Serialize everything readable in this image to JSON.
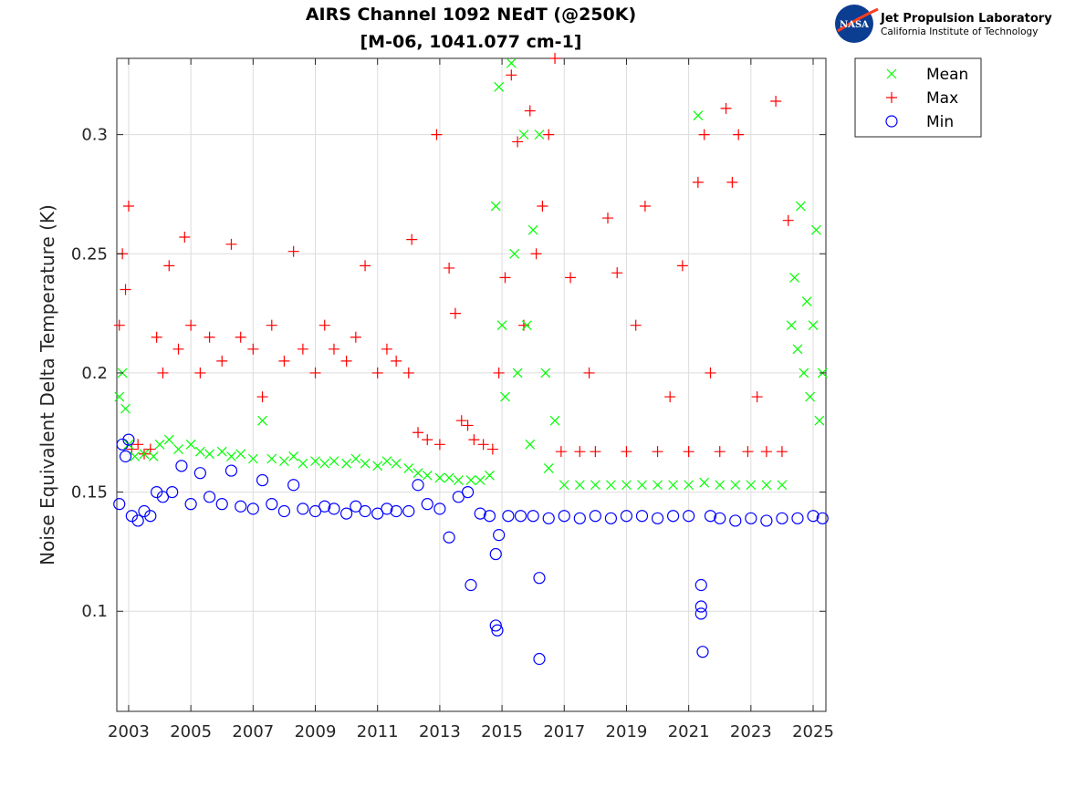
{
  "chart_data": {
    "type": "scatter",
    "title": "AIRS Channel 1092 NEdT (@250K)",
    "subtitle": "[M-06, 1041.077 cm-1]",
    "xlabel": "",
    "ylabel": "Noise Equivalent Delta Temperature (K)",
    "xlim": [
      2002.62,
      2025.41
    ],
    "ylim": [
      0.058,
      0.332
    ],
    "xticks": [
      "2003",
      "2005",
      "2007",
      "2009",
      "2011",
      "2013",
      "2015",
      "2017",
      "2019",
      "2021",
      "2023",
      "2025"
    ],
    "yticks": [
      "0.1",
      "0.15",
      "0.2",
      "0.25",
      "0.3"
    ],
    "grid": true,
    "legend_position": "outside-top-right",
    "series": [
      {
        "name": "Mean",
        "marker": "x",
        "color": "#00ff00",
        "points": [
          [
            2002.7,
            0.19
          ],
          [
            2002.8,
            0.2
          ],
          [
            2002.9,
            0.185
          ],
          [
            2003.0,
            0.17
          ],
          [
            2003.2,
            0.165
          ],
          [
            2003.5,
            0.166
          ],
          [
            2003.8,
            0.165
          ],
          [
            2004.0,
            0.17
          ],
          [
            2004.3,
            0.172
          ],
          [
            2004.6,
            0.168
          ],
          [
            2005.0,
            0.17
          ],
          [
            2005.3,
            0.167
          ],
          [
            2005.6,
            0.166
          ],
          [
            2006.0,
            0.167
          ],
          [
            2006.3,
            0.165
          ],
          [
            2006.6,
            0.166
          ],
          [
            2007.0,
            0.164
          ],
          [
            2007.3,
            0.18
          ],
          [
            2007.6,
            0.164
          ],
          [
            2008.0,
            0.163
          ],
          [
            2008.3,
            0.165
          ],
          [
            2008.6,
            0.162
          ],
          [
            2009.0,
            0.163
          ],
          [
            2009.3,
            0.162
          ],
          [
            2009.6,
            0.163
          ],
          [
            2010.0,
            0.162
          ],
          [
            2010.3,
            0.164
          ],
          [
            2010.6,
            0.162
          ],
          [
            2011.0,
            0.161
          ],
          [
            2011.3,
            0.163
          ],
          [
            2011.6,
            0.162
          ],
          [
            2012.0,
            0.16
          ],
          [
            2012.3,
            0.158
          ],
          [
            2012.6,
            0.157
          ],
          [
            2013.0,
            0.156
          ],
          [
            2013.3,
            0.156
          ],
          [
            2013.6,
            0.155
          ],
          [
            2014.0,
            0.155
          ],
          [
            2014.3,
            0.155
          ],
          [
            2014.6,
            0.157
          ],
          [
            2014.8,
            0.27
          ],
          [
            2014.9,
            0.32
          ],
          [
            2015.0,
            0.22
          ],
          [
            2015.1,
            0.19
          ],
          [
            2015.3,
            0.33
          ],
          [
            2015.4,
            0.25
          ],
          [
            2015.5,
            0.2
          ],
          [
            2015.7,
            0.3
          ],
          [
            2015.8,
            0.22
          ],
          [
            2015.9,
            0.17
          ],
          [
            2016.0,
            0.26
          ],
          [
            2016.2,
            0.3
          ],
          [
            2016.4,
            0.2
          ],
          [
            2016.5,
            0.16
          ],
          [
            2016.7,
            0.18
          ],
          [
            2017.0,
            0.153
          ],
          [
            2017.5,
            0.153
          ],
          [
            2018.0,
            0.153
          ],
          [
            2018.5,
            0.153
          ],
          [
            2019.0,
            0.153
          ],
          [
            2019.5,
            0.153
          ],
          [
            2020.0,
            0.153
          ],
          [
            2020.5,
            0.153
          ],
          [
            2021.0,
            0.153
          ],
          [
            2021.3,
            0.308
          ],
          [
            2021.5,
            0.154
          ],
          [
            2022.0,
            0.153
          ],
          [
            2022.5,
            0.153
          ],
          [
            2023.0,
            0.153
          ],
          [
            2023.5,
            0.153
          ],
          [
            2024.0,
            0.153
          ],
          [
            2024.3,
            0.22
          ],
          [
            2024.4,
            0.24
          ],
          [
            2024.5,
            0.21
          ],
          [
            2024.6,
            0.27
          ],
          [
            2024.7,
            0.2
          ],
          [
            2024.8,
            0.23
          ],
          [
            2024.9,
            0.19
          ],
          [
            2025.0,
            0.22
          ],
          [
            2025.1,
            0.26
          ],
          [
            2025.2,
            0.18
          ],
          [
            2025.3,
            0.2
          ]
        ]
      },
      {
        "name": "Max",
        "marker": "+",
        "color": "#ff0000",
        "points": [
          [
            2002.7,
            0.22
          ],
          [
            2002.8,
            0.25
          ],
          [
            2002.9,
            0.235
          ],
          [
            2003.0,
            0.27
          ],
          [
            2003.1,
            0.168
          ],
          [
            2003.3,
            0.17
          ],
          [
            2003.5,
            0.166
          ],
          [
            2003.7,
            0.168
          ],
          [
            2003.9,
            0.215
          ],
          [
            2004.1,
            0.2
          ],
          [
            2004.3,
            0.245
          ],
          [
            2004.6,
            0.21
          ],
          [
            2004.8,
            0.257
          ],
          [
            2005.0,
            0.22
          ],
          [
            2005.3,
            0.2
          ],
          [
            2005.6,
            0.215
          ],
          [
            2006.0,
            0.205
          ],
          [
            2006.3,
            0.254
          ],
          [
            2006.6,
            0.215
          ],
          [
            2007.0,
            0.21
          ],
          [
            2007.3,
            0.19
          ],
          [
            2007.6,
            0.22
          ],
          [
            2008.0,
            0.205
          ],
          [
            2008.3,
            0.251
          ],
          [
            2008.6,
            0.21
          ],
          [
            2009.0,
            0.2
          ],
          [
            2009.3,
            0.22
          ],
          [
            2009.6,
            0.21
          ],
          [
            2010.0,
            0.205
          ],
          [
            2010.3,
            0.215
          ],
          [
            2010.6,
            0.245
          ],
          [
            2011.0,
            0.2
          ],
          [
            2011.3,
            0.21
          ],
          [
            2011.6,
            0.205
          ],
          [
            2012.0,
            0.2
          ],
          [
            2012.1,
            0.256
          ],
          [
            2012.3,
            0.175
          ],
          [
            2012.6,
            0.172
          ],
          [
            2012.9,
            0.3
          ],
          [
            2013.0,
            0.17
          ],
          [
            2013.3,
            0.244
          ],
          [
            2013.5,
            0.225
          ],
          [
            2013.7,
            0.18
          ],
          [
            2013.9,
            0.178
          ],
          [
            2014.1,
            0.172
          ],
          [
            2014.4,
            0.17
          ],
          [
            2014.7,
            0.168
          ],
          [
            2014.9,
            0.2
          ],
          [
            2015.1,
            0.24
          ],
          [
            2015.3,
            0.325
          ],
          [
            2015.5,
            0.297
          ],
          [
            2015.7,
            0.22
          ],
          [
            2015.9,
            0.31
          ],
          [
            2016.1,
            0.25
          ],
          [
            2016.3,
            0.27
          ],
          [
            2016.5,
            0.3
          ],
          [
            2016.7,
            0.332
          ],
          [
            2016.9,
            0.167
          ],
          [
            2017.2,
            0.24
          ],
          [
            2017.5,
            0.167
          ],
          [
            2017.8,
            0.2
          ],
          [
            2018.0,
            0.167
          ],
          [
            2018.4,
            0.265
          ],
          [
            2018.7,
            0.242
          ],
          [
            2019.0,
            0.167
          ],
          [
            2019.3,
            0.22
          ],
          [
            2019.6,
            0.27
          ],
          [
            2020.0,
            0.167
          ],
          [
            2020.4,
            0.19
          ],
          [
            2020.8,
            0.245
          ],
          [
            2021.0,
            0.167
          ],
          [
            2021.3,
            0.28
          ],
          [
            2021.5,
            0.3
          ],
          [
            2021.7,
            0.2
          ],
          [
            2022.0,
            0.167
          ],
          [
            2022.2,
            0.311
          ],
          [
            2022.4,
            0.28
          ],
          [
            2022.6,
            0.3
          ],
          [
            2022.9,
            0.167
          ],
          [
            2023.2,
            0.19
          ],
          [
            2023.5,
            0.167
          ],
          [
            2023.8,
            0.314
          ],
          [
            2024.0,
            0.167
          ],
          [
            2024.2,
            0.264
          ]
        ]
      },
      {
        "name": "Min",
        "marker": "o",
        "color": "#0000ff",
        "points": [
          [
            2002.7,
            0.145
          ],
          [
            2002.8,
            0.17
          ],
          [
            2002.9,
            0.165
          ],
          [
            2003.0,
            0.172
          ],
          [
            2003.1,
            0.14
          ],
          [
            2003.3,
            0.138
          ],
          [
            2003.5,
            0.142
          ],
          [
            2003.7,
            0.14
          ],
          [
            2003.9,
            0.15
          ],
          [
            2004.1,
            0.148
          ],
          [
            2004.4,
            0.15
          ],
          [
            2004.7,
            0.161
          ],
          [
            2005.0,
            0.145
          ],
          [
            2005.3,
            0.158
          ],
          [
            2005.6,
            0.148
          ],
          [
            2006.0,
            0.145
          ],
          [
            2006.3,
            0.159
          ],
          [
            2006.6,
            0.144
          ],
          [
            2007.0,
            0.143
          ],
          [
            2007.3,
            0.155
          ],
          [
            2007.6,
            0.145
          ],
          [
            2008.0,
            0.142
          ],
          [
            2008.3,
            0.153
          ],
          [
            2008.6,
            0.143
          ],
          [
            2009.0,
            0.142
          ],
          [
            2009.3,
            0.144
          ],
          [
            2009.6,
            0.143
          ],
          [
            2010.0,
            0.141
          ],
          [
            2010.3,
            0.144
          ],
          [
            2010.6,
            0.142
          ],
          [
            2011.0,
            0.141
          ],
          [
            2011.3,
            0.143
          ],
          [
            2011.6,
            0.142
          ],
          [
            2012.0,
            0.142
          ],
          [
            2012.3,
            0.153
          ],
          [
            2012.6,
            0.145
          ],
          [
            2013.0,
            0.143
          ],
          [
            2013.3,
            0.131
          ],
          [
            2013.6,
            0.148
          ],
          [
            2013.9,
            0.15
          ],
          [
            2014.0,
            0.111
          ],
          [
            2014.3,
            0.141
          ],
          [
            2014.6,
            0.14
          ],
          [
            2014.8,
            0.124
          ],
          [
            2014.8,
            0.094
          ],
          [
            2014.85,
            0.092
          ],
          [
            2014.9,
            0.132
          ],
          [
            2015.2,
            0.14
          ],
          [
            2015.6,
            0.14
          ],
          [
            2016.0,
            0.14
          ],
          [
            2016.2,
            0.114
          ],
          [
            2016.2,
            0.08
          ],
          [
            2016.5,
            0.139
          ],
          [
            2017.0,
            0.14
          ],
          [
            2017.5,
            0.139
          ],
          [
            2018.0,
            0.14
          ],
          [
            2018.5,
            0.139
          ],
          [
            2019.0,
            0.14
          ],
          [
            2019.5,
            0.14
          ],
          [
            2020.0,
            0.139
          ],
          [
            2020.5,
            0.14
          ],
          [
            2021.0,
            0.14
          ],
          [
            2021.4,
            0.111
          ],
          [
            2021.4,
            0.102
          ],
          [
            2021.4,
            0.099
          ],
          [
            2021.45,
            0.083
          ],
          [
            2021.7,
            0.14
          ],
          [
            2022.0,
            0.139
          ],
          [
            2022.5,
            0.138
          ],
          [
            2023.0,
            0.139
          ],
          [
            2023.5,
            0.138
          ],
          [
            2024.0,
            0.139
          ],
          [
            2024.5,
            0.139
          ],
          [
            2025.0,
            0.14
          ],
          [
            2025.3,
            0.139
          ]
        ]
      }
    ]
  },
  "logo": {
    "org": "Jet Propulsion Laboratory",
    "sub": "California Institute of Technology",
    "badge": "NASA"
  }
}
